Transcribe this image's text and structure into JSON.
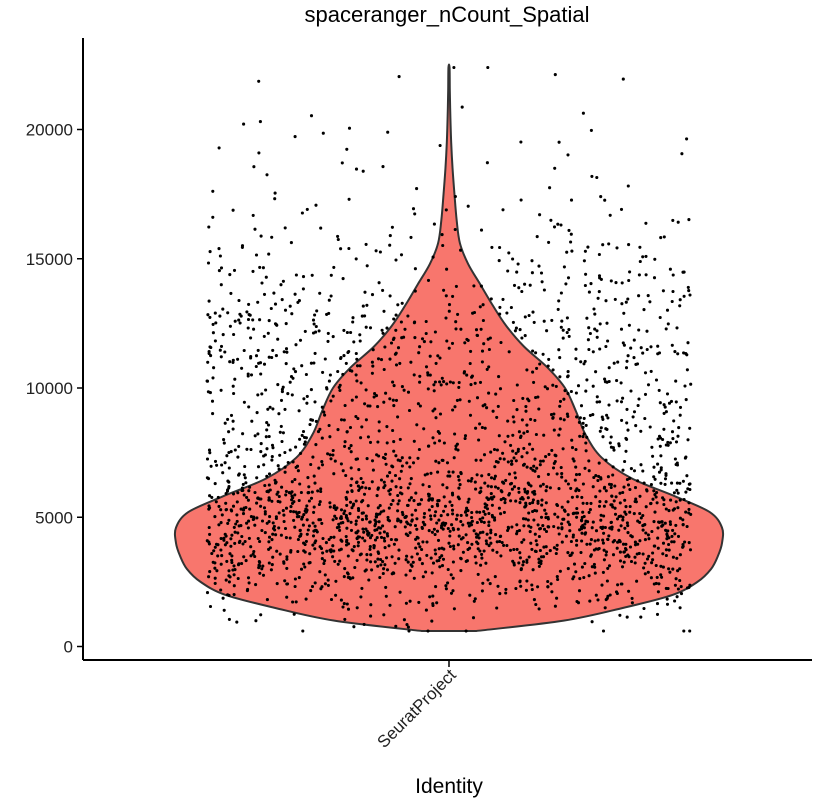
{
  "chart_data": {
    "type": "violin",
    "title": "spaceranger_nCount_Spatial",
    "xlabel": "Identity",
    "ylabel": "",
    "categories": [
      "SeuratProject"
    ],
    "ylim": [
      -500,
      23000
    ],
    "yticks": [
      0,
      5000,
      10000,
      15000,
      20000
    ],
    "grid": false,
    "legend": "none",
    "fill_color": "#F8766D",
    "outline_color": "#333333",
    "point_color": "#000000",
    "violin_profile": [
      {
        "y": 600,
        "density": 0.1
      },
      {
        "y": 1000,
        "density": 0.42
      },
      {
        "y": 1500,
        "density": 0.64
      },
      {
        "y": 2000,
        "density": 0.82
      },
      {
        "y": 2500,
        "density": 0.91
      },
      {
        "y": 3000,
        "density": 0.96
      },
      {
        "y": 3500,
        "density": 0.985
      },
      {
        "y": 4000,
        "density": 1.0
      },
      {
        "y": 4600,
        "density": 1.0
      },
      {
        "y": 5200,
        "density": 0.955
      },
      {
        "y": 5800,
        "density": 0.83
      },
      {
        "y": 6500,
        "density": 0.67
      },
      {
        "y": 7300,
        "density": 0.56
      },
      {
        "y": 8200,
        "density": 0.5
      },
      {
        "y": 9100,
        "density": 0.465
      },
      {
        "y": 10000,
        "density": 0.425
      },
      {
        "y": 10800,
        "density": 0.36
      },
      {
        "y": 11600,
        "density": 0.275
      },
      {
        "y": 12400,
        "density": 0.21
      },
      {
        "y": 13200,
        "density": 0.16
      },
      {
        "y": 14000,
        "density": 0.115
      },
      {
        "y": 14800,
        "density": 0.07
      },
      {
        "y": 15600,
        "density": 0.04
      },
      {
        "y": 16500,
        "density": 0.028
      },
      {
        "y": 17500,
        "density": 0.02
      },
      {
        "y": 18500,
        "density": 0.013
      },
      {
        "y": 19500,
        "density": 0.008
      },
      {
        "y": 20500,
        "density": 0.005
      },
      {
        "y": 21500,
        "density": 0.003
      },
      {
        "y": 22400,
        "density": 0.002
      }
    ],
    "value_summary": {
      "min": 600,
      "mode": 4500,
      "max": 22400,
      "n_points_approx": 2600
    }
  }
}
